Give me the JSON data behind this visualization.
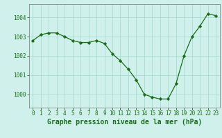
{
  "x": [
    0,
    1,
    2,
    3,
    4,
    5,
    6,
    7,
    8,
    9,
    10,
    11,
    12,
    13,
    14,
    15,
    16,
    17,
    18,
    19,
    20,
    21,
    22,
    23
  ],
  "y": [
    1002.8,
    1003.1,
    1003.2,
    1003.2,
    1003.0,
    1002.8,
    1002.7,
    1002.7,
    1002.8,
    1002.65,
    1002.1,
    1001.75,
    1001.3,
    1000.75,
    1000.0,
    999.85,
    999.75,
    999.75,
    1000.55,
    1002.0,
    1003.0,
    1003.55,
    1004.2,
    1004.1
  ],
  "line_color": "#1a6b1a",
  "marker": "D",
  "marker_size": 2.2,
  "bg_color": "#cff0eb",
  "grid_color": "#a0d8cc",
  "yticks": [
    1000,
    1001,
    1002,
    1003,
    1004
  ],
  "xticks": [
    0,
    1,
    2,
    3,
    4,
    5,
    6,
    7,
    8,
    9,
    10,
    11,
    12,
    13,
    14,
    15,
    16,
    17,
    18,
    19,
    20,
    21,
    22,
    23
  ],
  "xlabel": "Graphe pression niveau de la mer (hPa)",
  "ylim": [
    999.3,
    1004.7
  ],
  "xlim": [
    -0.5,
    23.5
  ],
  "title_color": "#1a6b1a",
  "spine_color": "#888888",
  "tick_fontsize": 5.5,
  "label_fontsize": 7.0
}
